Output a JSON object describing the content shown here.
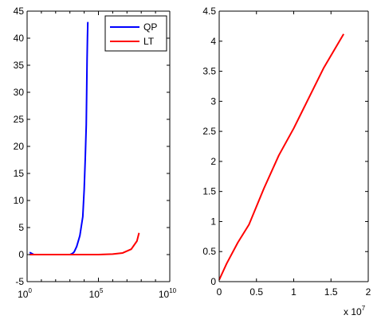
{
  "chart_data": [
    {
      "type": "line",
      "title": "",
      "xlabel": "",
      "ylabel": "",
      "xscale": "log",
      "xlim": [
        1,
        10000000000
      ],
      "ylim": [
        -5,
        45
      ],
      "grid": false,
      "legend_position": "top-right",
      "xtick_labels": [
        {
          "base": "10",
          "exp": "0"
        },
        {
          "base": "10",
          "exp": "5"
        },
        {
          "base": "10",
          "exp": "10"
        }
      ],
      "yticks": [
        -5,
        0,
        5,
        10,
        15,
        20,
        25,
        30,
        35,
        40,
        45
      ],
      "series": [
        {
          "name": "QP",
          "color": "#0000ff",
          "x": [
            1.5,
            3,
            10,
            100,
            1000,
            1500,
            2000,
            3000,
            5000,
            8000,
            10000,
            12000,
            14000,
            15000,
            16000,
            17000,
            18000
          ],
          "y": [
            0.4,
            0.0,
            0.0,
            0.0,
            0.0,
            0.2,
            0.5,
            1.5,
            3.5,
            7.0,
            12.0,
            18.0,
            24.0,
            30.0,
            36.0,
            40.0,
            43.0
          ]
        },
        {
          "name": "LT",
          "color": "#ff0000",
          "x": [
            1.5,
            10,
            100,
            1000,
            10000,
            100000,
            1000000,
            5000000,
            20000000,
            50000000,
            70000000
          ],
          "y": [
            0.0,
            0.0,
            0.0,
            0.0,
            0.0,
            0.0,
            0.1,
            0.3,
            1.0,
            2.5,
            4.0
          ]
        }
      ]
    },
    {
      "type": "line",
      "title": "",
      "xlabel": "",
      "ylabel": "",
      "xlim": [
        0,
        20000000
      ],
      "ylim": [
        0,
        4.5
      ],
      "grid": false,
      "xticks": [
        0,
        0.5,
        1,
        1.5,
        2
      ],
      "xtick_labels": [
        "0",
        "0.5",
        "1",
        "1.5",
        "2"
      ],
      "x_exponent_label": {
        "prefix": "x 10",
        "exp": "7"
      },
      "yticks": [
        0,
        0.5,
        1,
        1.5,
        2,
        2.5,
        3,
        3.5,
        4,
        4.5
      ],
      "ytick_labels": [
        "0",
        "0.5",
        "1",
        "1.5",
        "2",
        "2.5",
        "3",
        "3.5",
        "4",
        "4.5"
      ],
      "series": [
        {
          "color": "#ff0000",
          "x": [
            0,
            1000000,
            2500000,
            4000000,
            6000000,
            8000000,
            10000000,
            12000000,
            14000000,
            16700000
          ],
          "y": [
            0.03,
            0.3,
            0.65,
            0.95,
            1.55,
            2.1,
            2.55,
            3.05,
            3.55,
            4.12
          ]
        }
      ]
    }
  ]
}
